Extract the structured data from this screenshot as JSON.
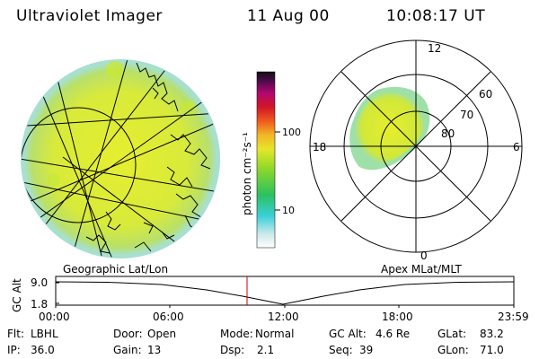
{
  "header": {
    "instrument": "Ultraviolet Imager",
    "date": "11 Aug 00",
    "time": "10:08:17 UT"
  },
  "colorbar": {
    "unit_label": "photon cm⁻²s⁻¹",
    "ticks": [
      {
        "label": "100",
        "value": 100
      },
      {
        "label": "10",
        "value": 10
      }
    ]
  },
  "left_panel": {
    "caption": "Geographic Lat/Lon"
  },
  "right_panel": {
    "caption": "Apex MLat/MLT",
    "mlt_labels": {
      "top": "12",
      "left": "18",
      "right": "6",
      "bottom": "0"
    },
    "mlat_labels": [
      "60",
      "70",
      "80"
    ]
  },
  "altitude_plot": {
    "ylabel": "GC Alt",
    "yticks": [
      "9.0",
      "1.8"
    ],
    "xticks": [
      "00:00",
      "06:00",
      "12:00",
      "18:00",
      "23:59"
    ],
    "marker_time": "10:08"
  },
  "status": {
    "flt_label": "Flt:",
    "flt_value": "LBHL",
    "ip_label": "IP:",
    "ip_value": "36.0",
    "door_label": "Door:",
    "door_value": "Open",
    "gain_label": "Gain:",
    "gain_value": "13",
    "mode_label": "Mode:",
    "mode_value": "Normal",
    "dsp_label": "Dsp:",
    "dsp_value": "2.1",
    "gcalt_label": "GC Alt:",
    "gcalt_value": "4.6 Re",
    "seq_label": "Seq:",
    "seq_value": "39",
    "glat_label": "GLat:",
    "glat_value": "83.2",
    "glon_label": "GLon:",
    "glon_value": "71.0"
  }
}
